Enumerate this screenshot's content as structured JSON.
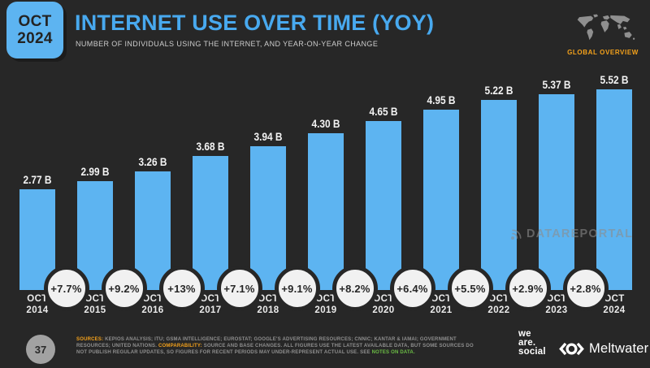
{
  "header": {
    "badge_line1": "OCT",
    "badge_line2": "2024",
    "title": "INTERNET USE OVER TIME (YOY)",
    "subtitle": "NUMBER OF INDIVIDUALS USING THE INTERNET, AND YEAR-ON-YEAR CHANGE",
    "overview_label": "GLOBAL OVERVIEW"
  },
  "chart_data": {
    "type": "bar",
    "title": "INTERNET USE OVER TIME (YOY)",
    "categories": [
      "OCT 2014",
      "OCT 2015",
      "OCT 2016",
      "OCT 2017",
      "OCT 2018",
      "OCT 2019",
      "OCT 2020",
      "OCT 2021",
      "OCT 2022",
      "OCT 2023",
      "OCT 2024"
    ],
    "values": [
      2.77,
      2.99,
      3.26,
      3.68,
      3.94,
      4.3,
      4.65,
      4.95,
      5.22,
      5.37,
      5.52
    ],
    "value_labels": [
      "2.77 B",
      "2.99 B",
      "3.26 B",
      "3.68 B",
      "3.94 B",
      "4.30 B",
      "4.65 B",
      "4.95 B",
      "5.22 B",
      "5.37 B",
      "5.52 B"
    ],
    "yoy_change_labels": [
      "+7.7%",
      "+9.2%",
      "+13%",
      "+7.1%",
      "+9.1%",
      "+8.2%",
      "+6.4%",
      "+5.5%",
      "+2.9%",
      "+2.8%"
    ],
    "xlabel": "",
    "ylabel": "",
    "ylim": [
      0,
      6
    ],
    "grid": false,
    "legend": false,
    "bar_color": "#5db4f1"
  },
  "watermark": {
    "text": "DATAREPORTAL"
  },
  "footer": {
    "page_number": "37",
    "sources_label": "SOURCES:",
    "sources_text": " KEPIOS ANALYSIS; ITU; GSMA INTELLIGENCE; EUROSTAT; GOOGLE'S ADVERTISING RESOURCES; CNNIC; KANTAR & IAMAI; GOVERNMENT RESOURCES; UNITED NATIONS. ",
    "comparability_label": "COMPARABILITY:",
    "comparability_text": " SOURCE AND BASE CHANGES. ALL FIGURES USE THE LATEST AVAILABLE DATA, BUT SOME SOURCES DO NOT PUBLISH REGULAR UPDATES, SO FIGURES FOR RECENT PERIODS MAY UNDER-REPRESENT ACTUAL USE. SEE ",
    "notes_link": "NOTES ON DATA.",
    "we_are_social": [
      "we",
      "are.",
      "social"
    ],
    "meltwater": "Meltwater"
  }
}
